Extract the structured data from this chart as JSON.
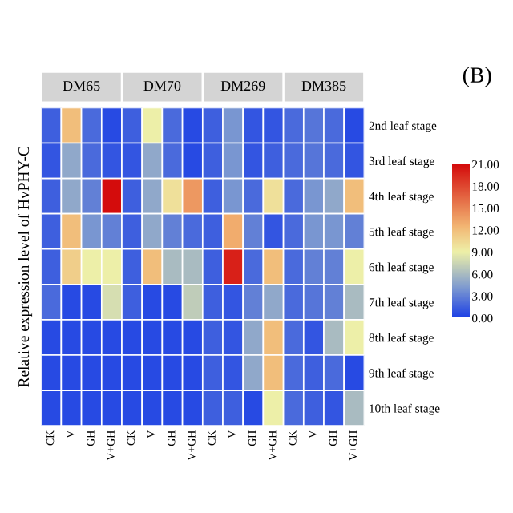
{
  "chart_data": {
    "type": "heatmap",
    "ylabel": "Relative expression level of HvPHY-C",
    "annotations": [
      "DM65",
      "DM70",
      "DM269",
      "DM385",
      "(B)"
    ],
    "categories": [
      "CK",
      "V",
      "GH",
      "V+GH",
      "CK",
      "V",
      "GH",
      "V+GH",
      "CK",
      "V",
      "GH",
      "V+GH",
      "CK",
      "V",
      "GH",
      "V+GH"
    ],
    "y_categories": [
      "2nd leaf stage",
      "3rd leaf stage",
      "4th leaf stage",
      "5th leaf stage",
      "6th leaf stage",
      "7th leaf stage",
      "8th leaf stage",
      "9th leaf stage",
      "10th leaf stage"
    ],
    "cells": [
      [
        1.5,
        12,
        2,
        0.5,
        1.5,
        9,
        2,
        0.5,
        1.5,
        4,
        1,
        1,
        2,
        2.5,
        2,
        0.5
      ],
      [
        1,
        5,
        2,
        1,
        1,
        5,
        2,
        0.5,
        1.5,
        4,
        1,
        1.5,
        2,
        2.5,
        2,
        1
      ],
      [
        1.5,
        5,
        3,
        21,
        1.5,
        5,
        10,
        14,
        1.5,
        4,
        2,
        10,
        2,
        4,
        5,
        12
      ],
      [
        1.5,
        12,
        4,
        3,
        1.5,
        5,
        3,
        2,
        1.5,
        13,
        3,
        1,
        2,
        4,
        4,
        3
      ],
      [
        1.5,
        11,
        9,
        9,
        1.5,
        12,
        6,
        6,
        1.5,
        20,
        2,
        12,
        2,
        3,
        3,
        9
      ],
      [
        2,
        0.5,
        0.5,
        8,
        1.5,
        0.5,
        0.5,
        7,
        1.5,
        1,
        3,
        5,
        2,
        2.5,
        3,
        6
      ],
      [
        0.5,
        0.5,
        0.5,
        0.5,
        0.5,
        0.5,
        0.5,
        0.5,
        1.5,
        1,
        5,
        12,
        2,
        1,
        6,
        9
      ],
      [
        0.5,
        0.5,
        0.5,
        0.5,
        0.5,
        0.5,
        0.5,
        0.5,
        1.5,
        1,
        5,
        12,
        2,
        1.5,
        2,
        0.5
      ],
      [
        0.5,
        0.5,
        0.5,
        0.5,
        0.5,
        0.5,
        0.5,
        0.5,
        1.5,
        1.5,
        0.5,
        9,
        2,
        1.5,
        1,
        6
      ]
    ],
    "clim": [
      0,
      21
    ],
    "cticks": [
      {
        "value": 0,
        "label": "0.00"
      },
      {
        "value": 3,
        "label": "3.00"
      },
      {
        "value": 6,
        "label": "6.00"
      },
      {
        "value": 9,
        "label": "9.00"
      },
      {
        "value": 12,
        "label": "12.00"
      },
      {
        "value": 15,
        "label": "15.00"
      },
      {
        "value": 18,
        "label": "18.00"
      },
      {
        "value": 21,
        "label": "21.00"
      }
    ]
  }
}
